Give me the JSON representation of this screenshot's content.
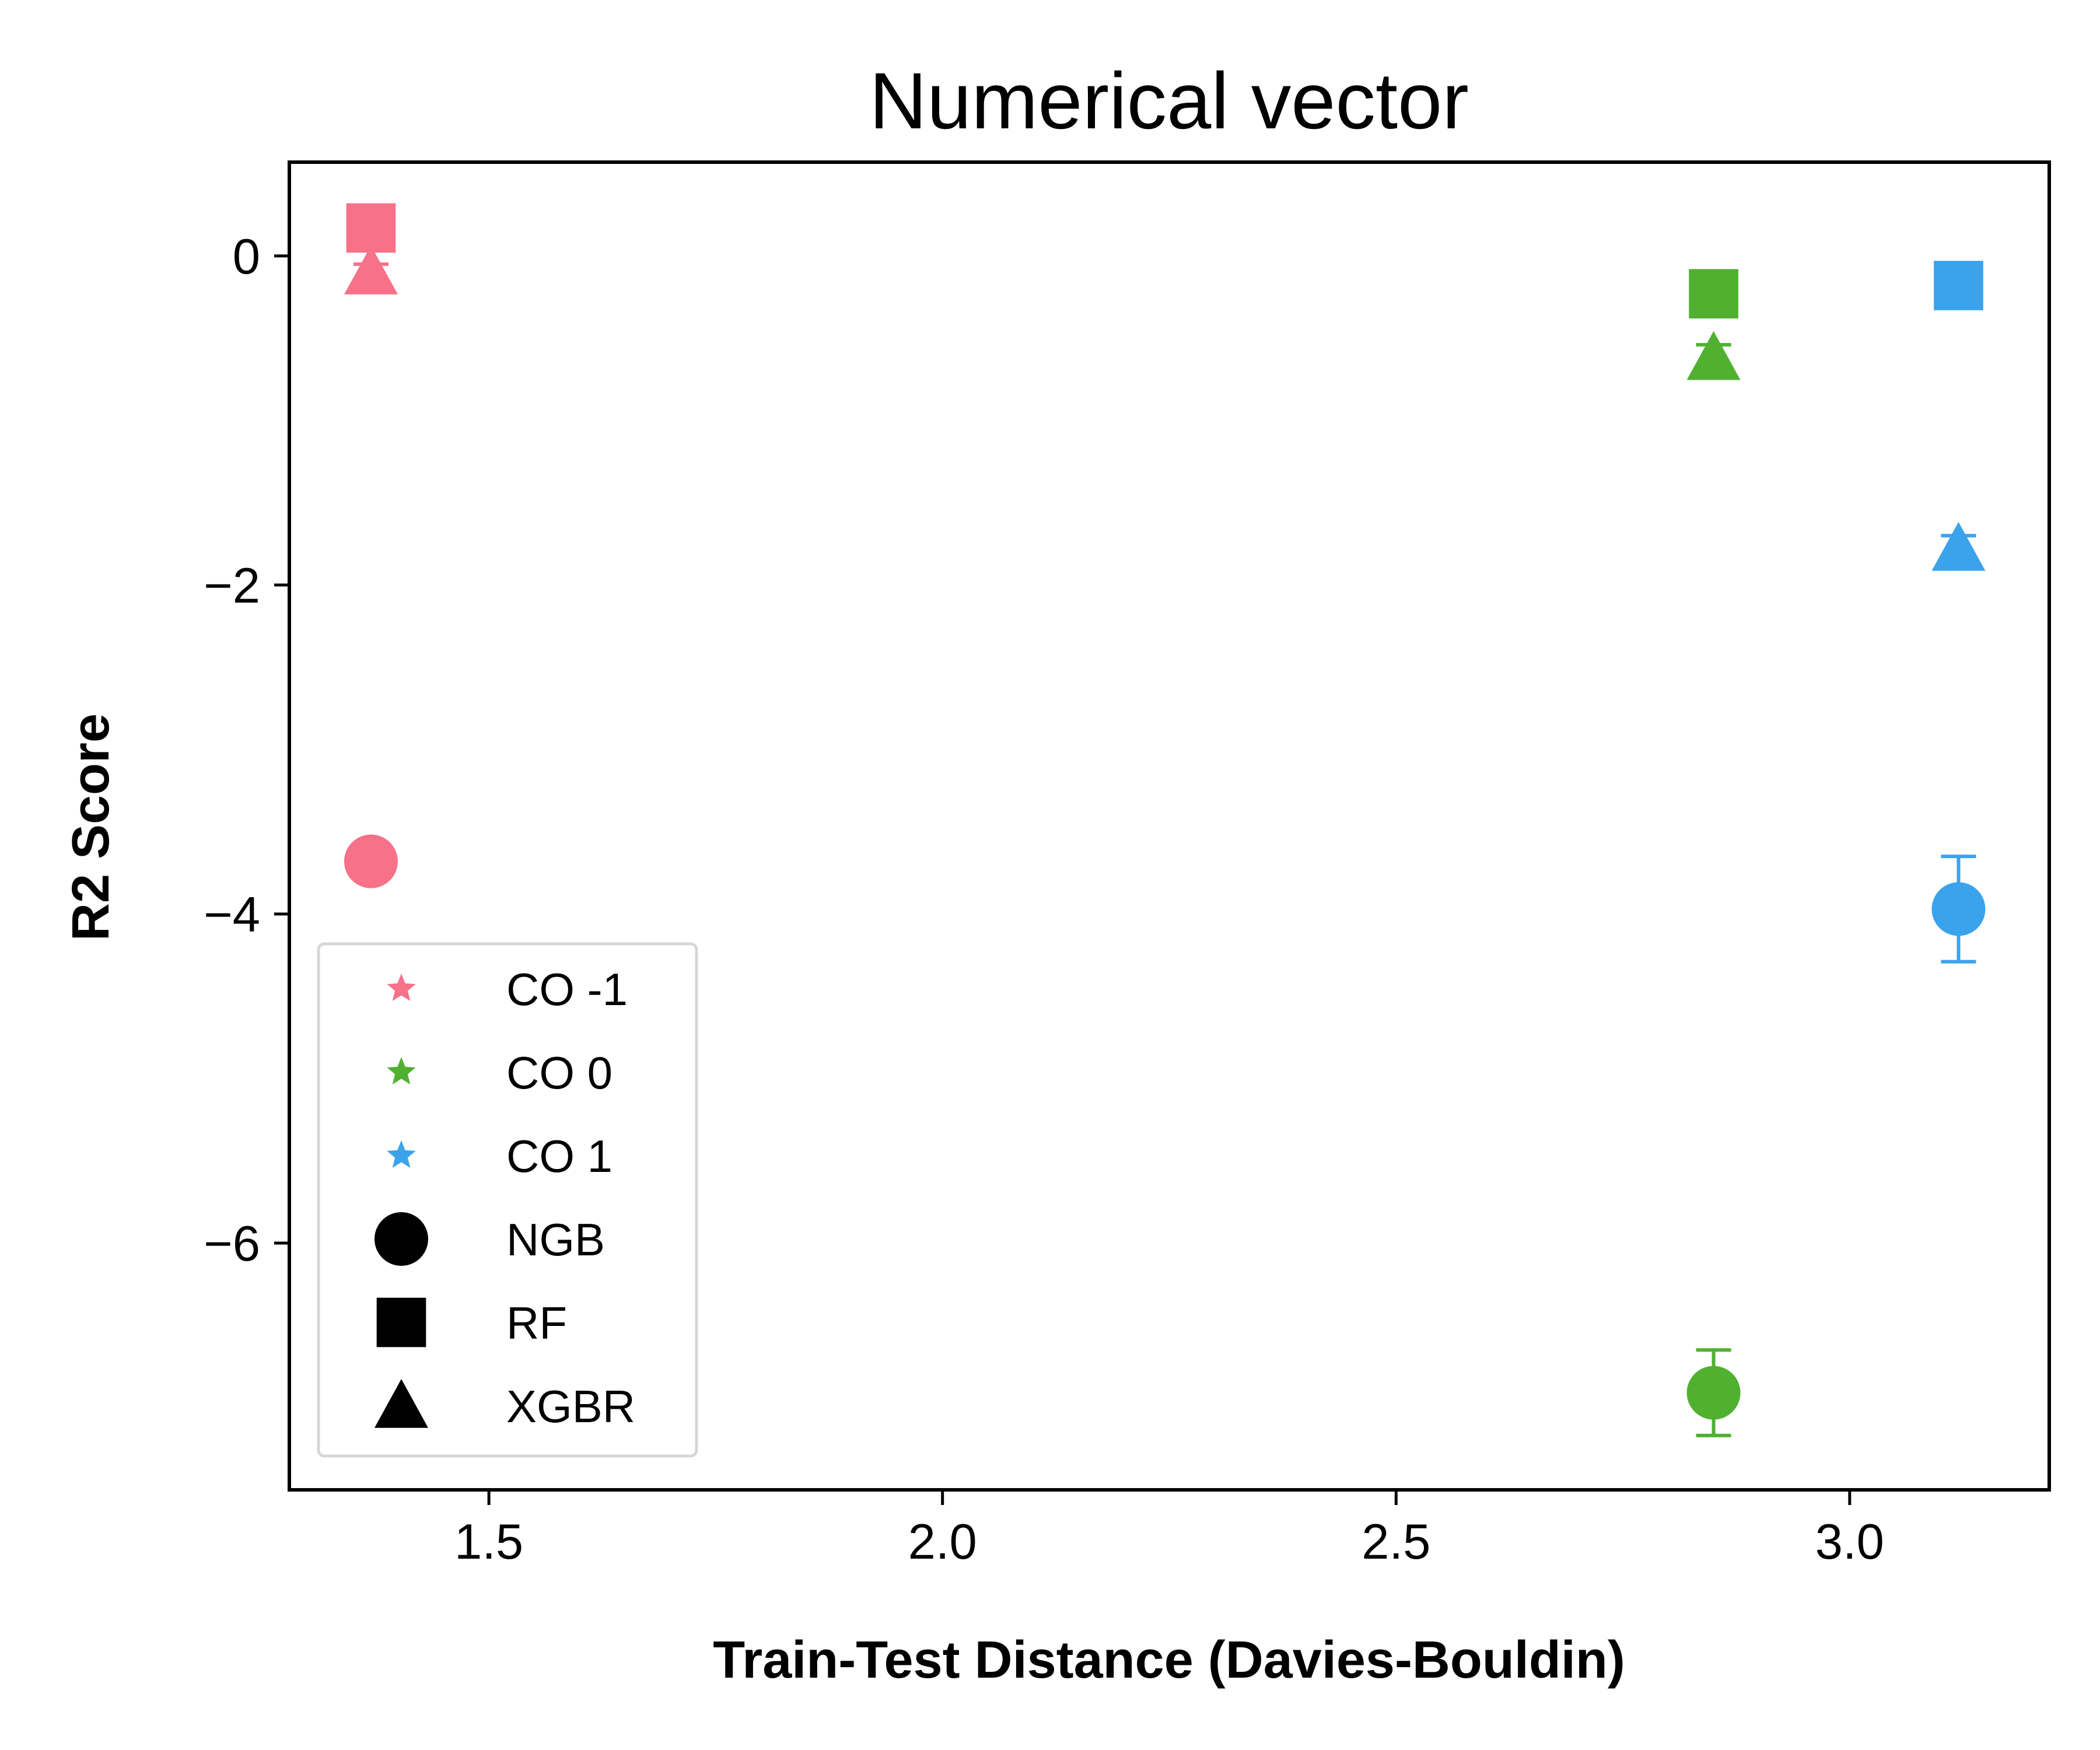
{
  "chart_data": {
    "type": "scatter",
    "title": "Numerical vector",
    "xlabel": "Train-Test Distance (Davies-Bouldin)",
    "ylabel": "R2 Score",
    "xlim": [
      1.28,
      3.22
    ],
    "ylim": [
      -7.5,
      0.57
    ],
    "xticks": [
      1.5,
      2.0,
      2.5,
      3.0
    ],
    "xtick_labels": [
      "1.5",
      "2.0",
      "2.5",
      "3.0"
    ],
    "yticks": [
      0,
      -2,
      -4,
      -6
    ],
    "ytick_labels": [
      "0",
      "−2",
      "−4",
      "−6"
    ],
    "grid": false,
    "legend_position": "lower-left",
    "groups": [
      {
        "name": "CO -1",
        "color": "#F77189"
      },
      {
        "name": "CO 0",
        "color": "#50B131"
      },
      {
        "name": "CO 1",
        "color": "#3BA3EC"
      }
    ],
    "models": [
      {
        "name": "NGB",
        "marker": "circle"
      },
      {
        "name": "RF",
        "marker": "square"
      },
      {
        "name": "XGBR",
        "marker": "triangle"
      }
    ],
    "points": [
      {
        "group": "CO -1",
        "model": "NGB",
        "x": 1.37,
        "y": -3.68,
        "err": 0.05
      },
      {
        "group": "CO -1",
        "model": "RF",
        "x": 1.37,
        "y": 0.17,
        "err": 0.05
      },
      {
        "group": "CO -1",
        "model": "XGBR",
        "x": 1.37,
        "y": -0.1,
        "err": 0.05
      },
      {
        "group": "CO 0",
        "model": "NGB",
        "x": 2.85,
        "y": -6.91,
        "err": 0.26
      },
      {
        "group": "CO 0",
        "model": "RF",
        "x": 2.85,
        "y": -0.23,
        "err": 0.05
      },
      {
        "group": "CO 0",
        "model": "XGBR",
        "x": 2.85,
        "y": -0.62,
        "err": 0.08
      },
      {
        "group": "CO 1",
        "model": "NGB",
        "x": 3.12,
        "y": -3.97,
        "err": 0.32
      },
      {
        "group": "CO 1",
        "model": "RF",
        "x": 3.12,
        "y": -0.18,
        "err": 0.05
      },
      {
        "group": "CO 1",
        "model": "XGBR",
        "x": 3.12,
        "y": -1.78,
        "err": 0.08
      }
    ]
  }
}
